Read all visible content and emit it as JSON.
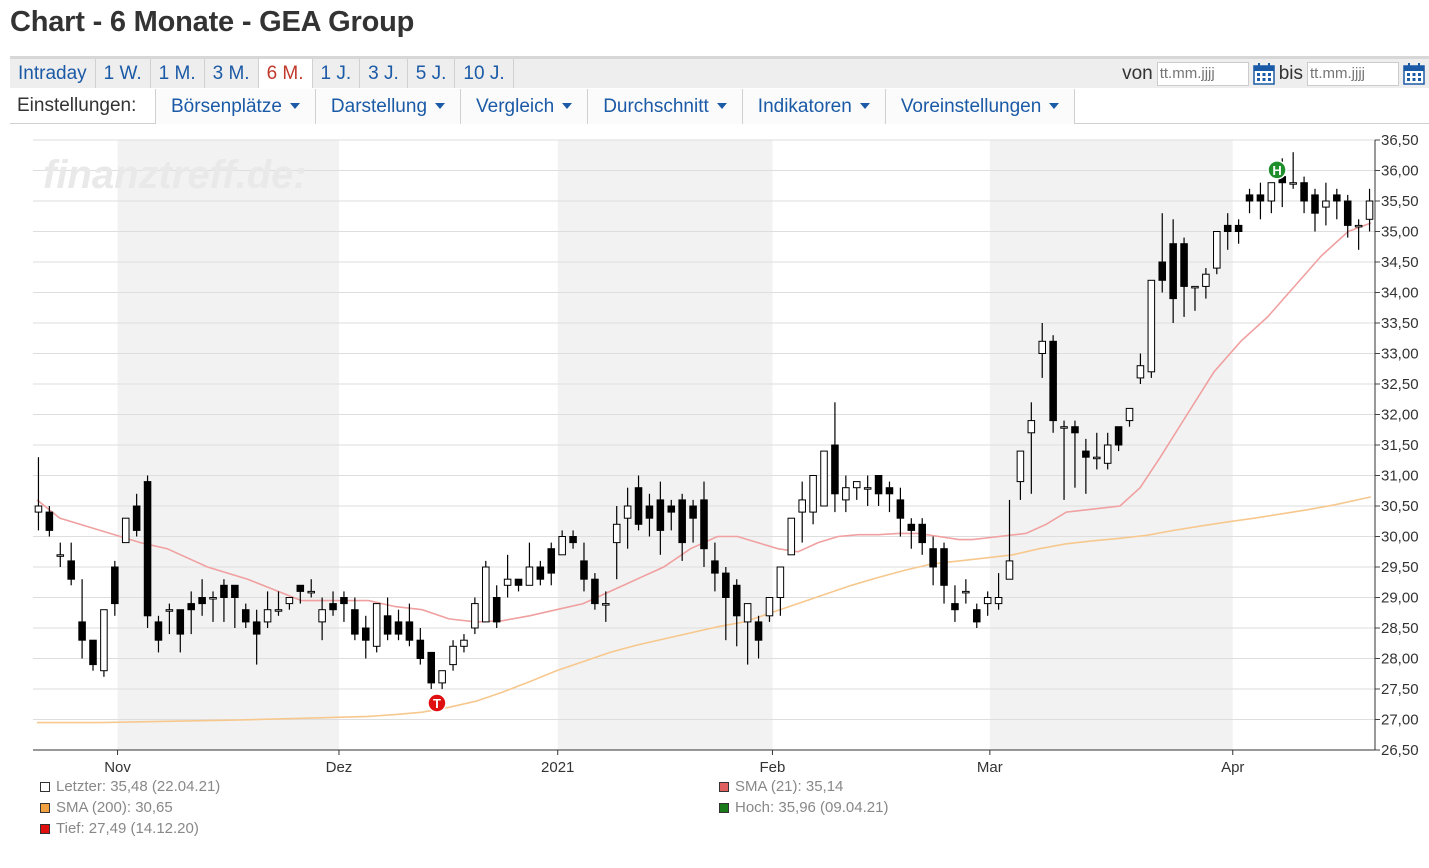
{
  "page": {
    "title": "Chart - 6 Monate - GEA Group"
  },
  "range_tabs": [
    {
      "label": "Intraday",
      "active": false
    },
    {
      "label": "1 W.",
      "active": false
    },
    {
      "label": "1 M.",
      "active": false
    },
    {
      "label": "3 M.",
      "active": false
    },
    {
      "label": "6 M.",
      "active": true
    },
    {
      "label": "1 J.",
      "active": false
    },
    {
      "label": "3 J.",
      "active": false
    },
    {
      "label": "5 J.",
      "active": false
    },
    {
      "label": "10 J.",
      "active": false
    }
  ],
  "date_range": {
    "from_label": "von",
    "from_placeholder": "tt.mm.jjjj",
    "to_label": "bis",
    "to_placeholder": "tt.mm.jjjj",
    "icon": "calendar-icon"
  },
  "settings": {
    "label": "Einstellungen:",
    "buttons": [
      "Börsenplätze",
      "Darstellung",
      "Vergleich",
      "Durchschnitt",
      "Indikatoren",
      "Voreinstellungen"
    ]
  },
  "watermark": "finanztreff.de:",
  "colors": {
    "link": "#1b5aa6",
    "active_tab": "#c0392b",
    "sma21": "#f0a0a0",
    "sma200": "#f7c88e",
    "low_marker": "#e01010",
    "high_marker": "#1f8f2c"
  },
  "legend": [
    {
      "text": "Letzter: 35,48 (22.04.21)",
      "color": "#ffffff"
    },
    {
      "text": "SMA (200): 30,65",
      "color": "#f0a040"
    },
    {
      "text": "Tief: 27,49 (14.12.20)",
      "color": "#e01010"
    },
    {
      "text": "SMA (21): 35,14",
      "color": "#e06060"
    },
    {
      "text": "Hoch: 35,96 (09.04.21)",
      "color": "#1a7a1a"
    }
  ],
  "chart_data": {
    "type": "candlestick",
    "y_ticks": [
      "26,50",
      "27,00",
      "27,50",
      "28,00",
      "28,50",
      "29,00",
      "29,50",
      "30,00",
      "30,50",
      "31,00",
      "31,50",
      "32,00",
      "32,50",
      "33,00",
      "33,50",
      "34,00",
      "34,50",
      "35,00",
      "35,50",
      "36,00",
      "36,50"
    ],
    "ylim": [
      26.5,
      36.5
    ],
    "x_ticks": [
      "Nov",
      "Dez",
      "2021",
      "Feb",
      "Mar",
      "Apr"
    ],
    "xlim": [
      0,
      1
    ],
    "x_tick_pos": [
      0.063,
      0.228,
      0.391,
      0.551,
      0.713,
      0.894
    ],
    "shaded_months": [
      [
        0.063,
        0.228
      ],
      [
        0.391,
        0.551
      ],
      [
        0.713,
        0.894
      ]
    ],
    "low_marker": {
      "label": "T",
      "x": 0.301,
      "y": 27.49
    },
    "high_marker": {
      "label": "H",
      "x": 0.927,
      "y": 35.96
    },
    "candles": [
      [
        30.4,
        31.3,
        30.5,
        30.1
      ],
      [
        30.4,
        30.5,
        30.1,
        30.0
      ],
      [
        29.7,
        29.9,
        29.7,
        29.5
      ],
      [
        29.6,
        29.9,
        29.3,
        29.2
      ],
      [
        28.6,
        29.3,
        28.3,
        28.0
      ],
      [
        28.3,
        28.3,
        27.9,
        27.8
      ],
      [
        27.8,
        28.8,
        28.8,
        27.7
      ],
      [
        29.5,
        29.6,
        28.9,
        28.7
      ],
      [
        29.9,
        30.3,
        30.3,
        29.9
      ],
      [
        30.5,
        30.7,
        30.1,
        30.0
      ],
      [
        30.9,
        31.0,
        28.7,
        28.5
      ],
      [
        28.6,
        28.7,
        28.3,
        28.1
      ],
      [
        28.8,
        28.9,
        28.8,
        28.4
      ],
      [
        28.8,
        28.8,
        28.4,
        28.1
      ],
      [
        28.9,
        29.1,
        28.8,
        28.4
      ],
      [
        29.0,
        29.3,
        28.9,
        28.7
      ],
      [
        29.0,
        29.1,
        29.0,
        28.6
      ],
      [
        29.2,
        29.3,
        29.0,
        28.6
      ],
      [
        29.2,
        29.2,
        29.0,
        28.5
      ],
      [
        28.8,
        28.9,
        28.6,
        28.5
      ],
      [
        28.6,
        28.8,
        28.4,
        27.9
      ],
      [
        28.6,
        29.1,
        28.8,
        28.5
      ],
      [
        28.8,
        29.1,
        28.8,
        28.7
      ],
      [
        28.9,
        29.0,
        29.0,
        28.8
      ],
      [
        29.2,
        29.2,
        29.1,
        28.9
      ],
      [
        29.1,
        29.3,
        29.1,
        29.0
      ],
      [
        28.6,
        29.0,
        28.8,
        28.3
      ],
      [
        28.9,
        29.1,
        28.8,
        28.7
      ],
      [
        29.0,
        29.1,
        28.9,
        28.6
      ],
      [
        28.8,
        29.0,
        28.4,
        28.3
      ],
      [
        28.5,
        28.7,
        28.3,
        28.0
      ],
      [
        28.2,
        28.7,
        28.9,
        28.1
      ],
      [
        28.7,
        29.0,
        28.4,
        28.3
      ],
      [
        28.6,
        28.8,
        28.4,
        28.3
      ],
      [
        28.6,
        28.9,
        28.3,
        28.2
      ],
      [
        28.3,
        28.5,
        28.0,
        27.9
      ],
      [
        28.1,
        28.1,
        27.6,
        27.5
      ],
      [
        27.6,
        27.6,
        27.8,
        27.5
      ],
      [
        27.9,
        28.3,
        28.2,
        27.8
      ],
      [
        28.2,
        28.4,
        28.3,
        28.1
      ],
      [
        28.5,
        29.0,
        28.9,
        28.4
      ],
      [
        28.6,
        29.6,
        29.5,
        28.6
      ],
      [
        29.0,
        29.2,
        28.6,
        28.5
      ],
      [
        29.2,
        29.7,
        29.3,
        29.0
      ],
      [
        29.3,
        29.3,
        29.2,
        29.1
      ],
      [
        29.2,
        29.9,
        29.5,
        29.2
      ],
      [
        29.5,
        29.6,
        29.3,
        29.2
      ],
      [
        29.8,
        29.9,
        29.4,
        29.2
      ],
      [
        29.7,
        30.1,
        30.0,
        29.7
      ],
      [
        30.0,
        30.1,
        29.9,
        29.8
      ],
      [
        29.6,
        29.9,
        29.3,
        29.1
      ],
      [
        29.3,
        29.4,
        28.9,
        28.8
      ],
      [
        28.9,
        29.1,
        28.9,
        28.6
      ],
      [
        29.9,
        30.5,
        30.2,
        29.3
      ],
      [
        30.3,
        30.8,
        30.5,
        29.8
      ],
      [
        30.8,
        31.0,
        30.2,
        30.1
      ],
      [
        30.5,
        30.7,
        30.3,
        30.0
      ],
      [
        30.6,
        30.9,
        30.1,
        29.7
      ],
      [
        30.5,
        30.6,
        30.4,
        30.1
      ],
      [
        30.6,
        30.7,
        29.9,
        29.6
      ],
      [
        30.5,
        30.6,
        30.3,
        29.9
      ],
      [
        30.6,
        30.9,
        29.8,
        29.5
      ],
      [
        29.6,
        29.9,
        29.4,
        29.1
      ],
      [
        29.4,
        29.5,
        29.0,
        28.3
      ],
      [
        29.2,
        29.3,
        28.7,
        28.2
      ],
      [
        28.6,
        28.9,
        28.9,
        27.9
      ],
      [
        28.6,
        28.7,
        28.3,
        28.0
      ],
      [
        28.7,
        29.0,
        29.0,
        28.6
      ],
      [
        29.0,
        29.5,
        29.5,
        28.7
      ],
      [
        29.7,
        29.9,
        30.3,
        29.7
      ],
      [
        30.4,
        30.9,
        30.6,
        29.9
      ],
      [
        30.4,
        31.0,
        31.0,
        30.2
      ],
      [
        30.5,
        30.8,
        31.4,
        30.5
      ],
      [
        31.5,
        32.2,
        30.7,
        30.4
      ],
      [
        30.6,
        31.0,
        30.8,
        30.4
      ],
      [
        30.8,
        30.9,
        30.9,
        30.6
      ],
      [
        30.8,
        31.0,
        30.8,
        30.5
      ],
      [
        31.0,
        31.0,
        30.7,
        30.5
      ],
      [
        30.8,
        30.9,
        30.7,
        30.4
      ],
      [
        30.6,
        30.8,
        30.3,
        30.0
      ],
      [
        30.2,
        30.3,
        30.1,
        29.8
      ],
      [
        30.2,
        30.3,
        29.9,
        29.7
      ],
      [
        29.8,
        30.0,
        29.5,
        29.2
      ],
      [
        29.8,
        29.9,
        29.2,
        28.9
      ],
      [
        28.9,
        29.2,
        28.8,
        28.6
      ],
      [
        29.1,
        29.3,
        29.1,
        28.9
      ],
      [
        28.8,
        28.9,
        28.6,
        28.5
      ],
      [
        28.9,
        29.1,
        29.0,
        28.7
      ],
      [
        28.9,
        29.4,
        29.0,
        28.8
      ],
      [
        29.3,
        30.6,
        29.6,
        29.3
      ],
      [
        30.9,
        31.1,
        31.4,
        30.6
      ],
      [
        31.7,
        32.2,
        31.9,
        30.7
      ],
      [
        33.0,
        33.5,
        33.2,
        32.6
      ],
      [
        33.2,
        33.3,
        31.9,
        31.7
      ],
      [
        31.8,
        31.9,
        31.8,
        30.6
      ],
      [
        31.8,
        31.9,
        31.7,
        30.8
      ],
      [
        31.4,
        31.6,
        31.3,
        30.7
      ],
      [
        31.3,
        31.7,
        31.3,
        31.1
      ],
      [
        31.2,
        31.7,
        31.5,
        31.1
      ],
      [
        31.8,
        31.8,
        31.5,
        31.4
      ],
      [
        31.9,
        32.0,
        32.1,
        31.8
      ],
      [
        32.6,
        33.0,
        32.8,
        32.5
      ],
      [
        32.7,
        34.2,
        34.2,
        32.6
      ],
      [
        34.5,
        35.3,
        34.2,
        34.0
      ],
      [
        34.8,
        35.2,
        33.9,
        33.5
      ],
      [
        34.8,
        34.9,
        34.1,
        33.6
      ],
      [
        34.1,
        34.1,
        34.1,
        33.7
      ],
      [
        34.1,
        34.4,
        34.3,
        33.9
      ],
      [
        34.4,
        35.0,
        35.0,
        34.3
      ],
      [
        35.1,
        35.3,
        35.0,
        34.7
      ],
      [
        35.1,
        35.2,
        35.0,
        34.8
      ],
      [
        35.6,
        35.7,
        35.5,
        35.3
      ],
      [
        35.6,
        35.8,
        35.5,
        35.2
      ],
      [
        35.5,
        35.8,
        35.8,
        35.3
      ],
      [
        35.9,
        36.2,
        35.8,
        35.4
      ],
      [
        35.8,
        36.3,
        35.8,
        35.7
      ],
      [
        35.8,
        35.9,
        35.5,
        35.3
      ],
      [
        35.6,
        35.7,
        35.3,
        35.0
      ],
      [
        35.4,
        35.8,
        35.5,
        35.1
      ],
      [
        35.6,
        35.7,
        35.5,
        35.2
      ],
      [
        35.5,
        35.6,
        35.1,
        34.9
      ],
      [
        35.1,
        35.2,
        35.1,
        34.7
      ],
      [
        35.2,
        35.7,
        35.5,
        35.0
      ]
    ],
    "sma21": [
      [
        0.003,
        30.6
      ],
      [
        0.02,
        30.3
      ],
      [
        0.05,
        30.1
      ],
      [
        0.08,
        29.9
      ],
      [
        0.1,
        29.8
      ],
      [
        0.13,
        29.5
      ],
      [
        0.16,
        29.3
      ],
      [
        0.2,
        28.95
      ],
      [
        0.23,
        28.95
      ],
      [
        0.25,
        28.95
      ],
      [
        0.27,
        28.85
      ],
      [
        0.29,
        28.8
      ],
      [
        0.31,
        28.65
      ],
      [
        0.33,
        28.6
      ],
      [
        0.35,
        28.62
      ],
      [
        0.37,
        28.7
      ],
      [
        0.39,
        28.8
      ],
      [
        0.41,
        28.9
      ],
      [
        0.43,
        29.1
      ],
      [
        0.45,
        29.3
      ],
      [
        0.47,
        29.5
      ],
      [
        0.49,
        29.8
      ],
      [
        0.51,
        30.0
      ],
      [
        0.525,
        30.0
      ],
      [
        0.54,
        29.9
      ],
      [
        0.555,
        29.8
      ],
      [
        0.57,
        29.75
      ],
      [
        0.585,
        29.9
      ],
      [
        0.6,
        30.0
      ],
      [
        0.615,
        30.03
      ],
      [
        0.63,
        30.03
      ],
      [
        0.645,
        30.05
      ],
      [
        0.66,
        30.05
      ],
      [
        0.675,
        30.0
      ],
      [
        0.69,
        29.95
      ],
      [
        0.7,
        29.95
      ],
      [
        0.72,
        30.0
      ],
      [
        0.74,
        30.05
      ],
      [
        0.755,
        30.2
      ],
      [
        0.77,
        30.4
      ],
      [
        0.79,
        30.45
      ],
      [
        0.81,
        30.5
      ],
      [
        0.825,
        30.8
      ],
      [
        0.84,
        31.3
      ],
      [
        0.86,
        32.0
      ],
      [
        0.88,
        32.7
      ],
      [
        0.9,
        33.2
      ],
      [
        0.92,
        33.6
      ],
      [
        0.94,
        34.1
      ],
      [
        0.96,
        34.6
      ],
      [
        0.98,
        35.0
      ],
      [
        0.997,
        35.14
      ]
    ],
    "sma200": [
      [
        0.003,
        26.95
      ],
      [
        0.05,
        26.95
      ],
      [
        0.1,
        26.97
      ],
      [
        0.15,
        26.99
      ],
      [
        0.2,
        27.02
      ],
      [
        0.25,
        27.05
      ],
      [
        0.27,
        27.08
      ],
      [
        0.29,
        27.12
      ],
      [
        0.31,
        27.2
      ],
      [
        0.33,
        27.3
      ],
      [
        0.35,
        27.45
      ],
      [
        0.37,
        27.62
      ],
      [
        0.39,
        27.8
      ],
      [
        0.41,
        27.95
      ],
      [
        0.43,
        28.1
      ],
      [
        0.45,
        28.22
      ],
      [
        0.47,
        28.32
      ],
      [
        0.49,
        28.42
      ],
      [
        0.51,
        28.52
      ],
      [
        0.53,
        28.6
      ],
      [
        0.55,
        28.75
      ],
      [
        0.57,
        28.9
      ],
      [
        0.59,
        29.05
      ],
      [
        0.61,
        29.2
      ],
      [
        0.63,
        29.33
      ],
      [
        0.65,
        29.45
      ],
      [
        0.67,
        29.55
      ],
      [
        0.69,
        29.6
      ],
      [
        0.71,
        29.65
      ],
      [
        0.73,
        29.7
      ],
      [
        0.75,
        29.8
      ],
      [
        0.77,
        29.88
      ],
      [
        0.79,
        29.93
      ],
      [
        0.81,
        29.97
      ],
      [
        0.83,
        30.02
      ],
      [
        0.85,
        30.1
      ],
      [
        0.87,
        30.17
      ],
      [
        0.89,
        30.24
      ],
      [
        0.91,
        30.3
      ],
      [
        0.93,
        30.37
      ],
      [
        0.95,
        30.44
      ],
      [
        0.97,
        30.52
      ],
      [
        0.997,
        30.65
      ]
    ]
  }
}
